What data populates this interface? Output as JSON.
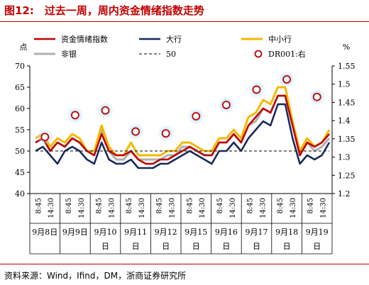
{
  "figure": {
    "title": "图12:　过去一周，周内资金情绪指数走势",
    "source": "资料来源：Wind，Ifind，DM，浙商证券研究所"
  },
  "colors": {
    "title_red": "#c00000",
    "index": "#c00000",
    "big_bank": "#14285a",
    "mid_small_bank": "#f5b800",
    "non_bank": "#b0b0b0",
    "baseline": "#333333",
    "dr001_marker": "#c00000",
    "dr001_glow": "#9fd4f5"
  },
  "chart_data": {
    "type": "line",
    "left_axis_unit": "点",
    "right_axis_unit": "%",
    "left_ylim": [
      40,
      70
    ],
    "left_ticks": [
      40,
      45,
      50,
      55,
      60,
      65,
      70
    ],
    "right_ylim": [
      1.2,
      1.55
    ],
    "right_ticks": [
      "1.2",
      "1.25",
      "1.3",
      "1.35",
      "1.4",
      "1.45",
      "1.5",
      "1.55"
    ],
    "time_labels": [
      "8:45",
      "14:30"
    ],
    "days": [
      {
        "label": "9月8日",
        "line2": ""
      },
      {
        "label": "9月9日",
        "line2": ""
      },
      {
        "label": "9月10",
        "line2": "日"
      },
      {
        "label": "9月11",
        "line2": "日"
      },
      {
        "label": "9月12",
        "line2": "日"
      },
      {
        "label": "9月15",
        "line2": "日"
      },
      {
        "label": "9月16",
        "line2": "日"
      },
      {
        "label": "9月17",
        "line2": "日"
      },
      {
        "label": "9月18",
        "line2": "日"
      },
      {
        "label": "9月19",
        "line2": "日"
      }
    ],
    "legend": [
      {
        "key": "index",
        "label": "资金情绪指数",
        "style": "line"
      },
      {
        "key": "big_bank",
        "label": "大行",
        "style": "line"
      },
      {
        "key": "mid_small_bank",
        "label": "中小行",
        "style": "line"
      },
      {
        "key": "non_bank",
        "label": "非银",
        "style": "line"
      },
      {
        "key": "baseline",
        "label": "50",
        "style": "dash"
      },
      {
        "key": "dr001",
        "label": "DR001:右",
        "style": "marker"
      }
    ],
    "series": [
      {
        "key": "index",
        "name": "资金情绪指数",
        "axis": "left",
        "values": [
          52,
          53,
          50,
          52,
          51,
          53,
          52,
          50,
          49,
          54,
          50,
          49,
          49,
          50,
          48,
          47,
          47,
          48,
          48,
          49,
          50,
          51,
          50,
          49,
          49,
          52,
          52,
          54,
          52,
          56,
          58,
          60,
          59,
          63,
          63,
          56,
          49,
          52,
          51,
          52,
          54
        ]
      },
      {
        "key": "big_bank",
        "name": "大行",
        "axis": "left",
        "values": [
          50,
          51,
          49,
          47,
          50,
          51,
          50,
          48,
          47,
          52,
          48,
          47,
          47,
          48,
          46,
          46,
          46,
          47,
          47,
          48,
          49,
          50,
          49,
          48,
          47,
          50,
          50,
          52,
          50,
          53,
          55,
          57,
          56,
          61,
          61,
          53,
          47,
          49,
          48,
          49,
          52
        ]
      },
      {
        "key": "mid_small_bank",
        "name": "中小行",
        "axis": "left",
        "values": [
          53,
          54,
          51,
          53,
          52,
          54,
          53,
          50,
          50,
          56,
          51,
          49,
          49,
          52,
          49,
          49,
          49,
          49,
          50,
          50,
          52,
          52,
          51,
          50,
          50,
          53,
          53,
          55,
          53,
          58,
          59,
          62,
          61,
          65,
          65,
          57,
          50,
          53,
          51,
          52,
          55
        ]
      },
      {
        "key": "non_bank",
        "name": "非银",
        "axis": "left",
        "values": [
          52,
          53,
          50,
          52,
          51,
          53,
          52,
          50,
          49,
          55,
          50,
          48,
          48,
          50,
          48,
          48,
          48,
          48,
          49,
          49,
          51,
          51,
          50,
          49,
          49,
          52,
          52,
          54,
          52,
          56,
          57,
          60,
          59,
          63,
          63,
          56,
          49,
          52,
          50,
          51,
          53
        ]
      },
      {
        "key": "baseline",
        "name": "50",
        "axis": "left",
        "values": [
          50,
          50,
          50,
          50,
          50,
          50,
          50,
          50,
          50,
          50,
          50,
          50,
          50,
          50,
          50,
          50,
          50,
          50,
          50,
          50,
          50,
          50,
          50,
          50,
          50,
          50,
          50,
          50,
          50,
          50,
          50,
          50,
          50,
          50,
          50,
          50,
          50,
          50,
          50,
          50,
          50
        ]
      }
    ],
    "dr001": [
      {
        "day": 0,
        "value": 1.355
      },
      {
        "day": 1,
        "value": 1.415
      },
      {
        "day": 2,
        "value": 1.428
      },
      {
        "day": 3,
        "value": 1.37
      },
      {
        "day": 4,
        "value": 1.365
      },
      {
        "day": 5,
        "value": 1.412
      },
      {
        "day": 6,
        "value": 1.443
      },
      {
        "day": 7,
        "value": 1.485
      },
      {
        "day": 8,
        "value": 1.513
      },
      {
        "day": 9,
        "value": 1.465
      }
    ]
  }
}
